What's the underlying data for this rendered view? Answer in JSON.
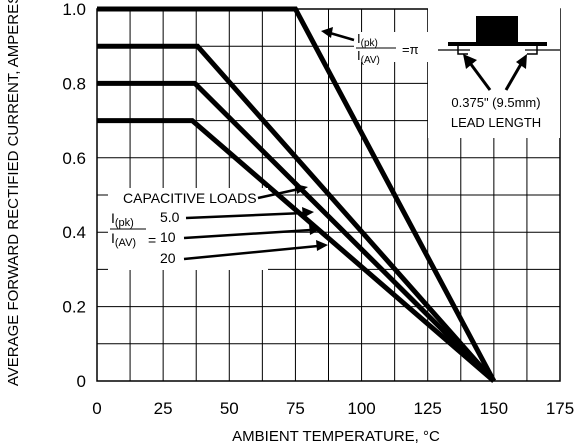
{
  "chart_data": {
    "type": "line",
    "title": "",
    "xlabel": "AMBIENT TEMPERATURE, °C",
    "ylabel": "AVERAGE FORWARD RECTIFIED CURRENT, AMPERES",
    "xlim": [
      0,
      175
    ],
    "ylim": [
      0,
      1.0
    ],
    "x_ticks": [
      "0",
      "25",
      "50",
      "75",
      "100",
      "125",
      "150",
      "175"
    ],
    "y_ticks": [
      "0",
      "0.2",
      "0.4",
      "0.6",
      "0.8",
      "1.0"
    ],
    "x_tick_values": [
      0,
      25,
      50,
      75,
      100,
      125,
      150,
      175
    ],
    "y_tick_values": [
      0,
      0.2,
      0.4,
      0.6,
      0.8,
      1.0
    ],
    "x_minor_grid": [
      12.5,
      37.5,
      62.5,
      87.5,
      112.5,
      137.5,
      162.5
    ],
    "y_minor_grid": [
      0.1,
      0.3,
      0.5,
      0.7,
      0.9
    ],
    "grid": true,
    "series": [
      {
        "label": "π",
        "x": [
          0,
          75,
          150
        ],
        "y": [
          1.0,
          1.0,
          0
        ]
      },
      {
        "label": "5.0",
        "x": [
          0,
          38,
          150
        ],
        "y": [
          0.9,
          0.9,
          0
        ]
      },
      {
        "label": "10",
        "x": [
          0,
          37,
          150
        ],
        "y": [
          0.8,
          0.8,
          0
        ]
      },
      {
        "label": "20",
        "x": [
          0,
          36,
          150
        ],
        "y": [
          0.7,
          0.7,
          0
        ]
      }
    ],
    "annotations": {
      "ratio_num": "I",
      "ratio_num_sub": "(pk)",
      "ratio_den": "I",
      "ratio_den_sub": "(AV)",
      "pi_eq": "=π",
      "lead_length": "0.375\" (9.5mm)",
      "lead_length_label": "LEAD LENGTH",
      "capacitive_loads": "CAPACITIVE LOADS",
      "eq_sign": "=",
      "load_5": "5.0",
      "load_10": "10",
      "load_20": "20"
    }
  }
}
